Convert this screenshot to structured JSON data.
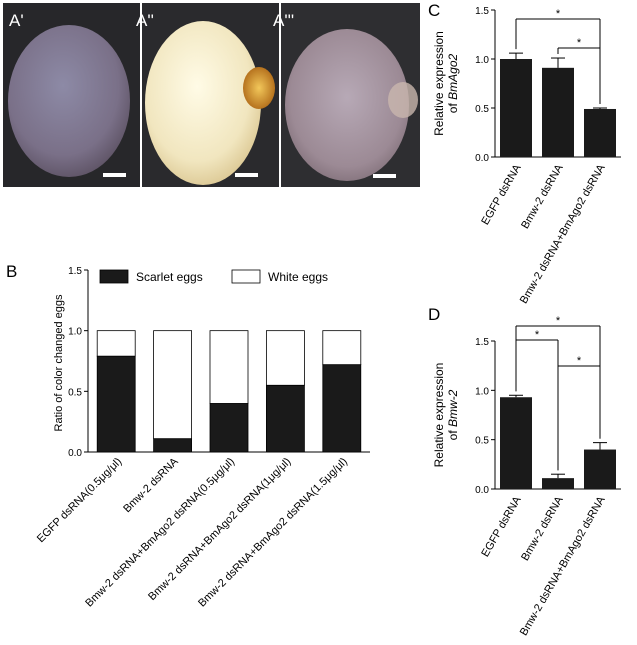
{
  "photos": {
    "panels": [
      {
        "label": "A'",
        "egg_color": "#8a8295",
        "bg": "#2a2a2c"
      },
      {
        "label": "A''",
        "egg_color": "#efe6c2",
        "bg": "#2c2c2e"
      },
      {
        "label": "A'''",
        "egg_color": "#a3949e",
        "bg": "#303032"
      }
    ]
  },
  "panel_labels": {
    "b": "B",
    "c": "C",
    "d": "D"
  },
  "chart_data": [
    {
      "id": "B",
      "type": "bar",
      "stacked": true,
      "categories": [
        "EGFP dsRNA(0.5μg/μl)",
        "Bmw-2 dsRNA",
        "Bmw-2 dsRNA+BmAgo2 dsRNA(0.5μg/μl)",
        "Bmw-2 dsRNA+BmAgo2 dsRNA(1μg/μl)",
        "Bmw-2 dsRNA+BmAgo2 dsRNA(1.5μg/μl)"
      ],
      "series": [
        {
          "name": "Scarlet eggs",
          "values": [
            0.79,
            0.11,
            0.4,
            0.55,
            0.72
          ],
          "color": "#1a1a1a"
        },
        {
          "name": "White eggs",
          "values": [
            0.21,
            0.89,
            0.6,
            0.45,
            0.28
          ],
          "color": "#ffffff"
        }
      ],
      "ylabel": "Ratio of color changed eggs",
      "ylim": [
        0,
        1.5
      ],
      "yticks": [
        "0.0",
        "0.5",
        "1.0",
        "1.5"
      ],
      "legend": "top"
    },
    {
      "id": "C",
      "type": "bar",
      "categories": [
        "EGFP dsRNA",
        "Bmw-2 dsRNA",
        "Bmw-2 dsRNA+BmAgo2 dsRNA"
      ],
      "values": [
        1.0,
        0.91,
        0.49
      ],
      "errors": [
        0.06,
        0.1,
        0.01
      ],
      "ylabel_line1": "Relative expression",
      "ylabel_line2_prefix": "of ",
      "ylabel_line2_gene": "BmAgo2",
      "ylim": [
        0,
        1.5
      ],
      "yticks": [
        "0.0",
        "0.5",
        "1.0",
        "1.5"
      ],
      "significance": [
        {
          "from": 0,
          "to": 2,
          "label": "*"
        },
        {
          "from": 1,
          "to": 2,
          "label": "*"
        }
      ]
    },
    {
      "id": "D",
      "type": "bar",
      "categories": [
        "EGFP dsRNA",
        "Bmw-2 dsRNA",
        "Bmw-2 dsRNA+BmAgo2 dsRNA"
      ],
      "values": [
        0.93,
        0.11,
        0.4
      ],
      "errors": [
        0.02,
        0.04,
        0.07
      ],
      "ylabel_line1": "Relative expression",
      "ylabel_line2_prefix": "of ",
      "ylabel_line2_gene": "Bmw-2",
      "ylim": [
        0,
        1.5
      ],
      "yticks": [
        "0.0",
        "0.5",
        "1.0",
        "1.5"
      ],
      "significance": [
        {
          "from": 0,
          "to": 1,
          "label": "*"
        },
        {
          "from": 0,
          "to": 2,
          "label": "*"
        },
        {
          "from": 1,
          "to": 2,
          "label": "*"
        }
      ]
    }
  ]
}
